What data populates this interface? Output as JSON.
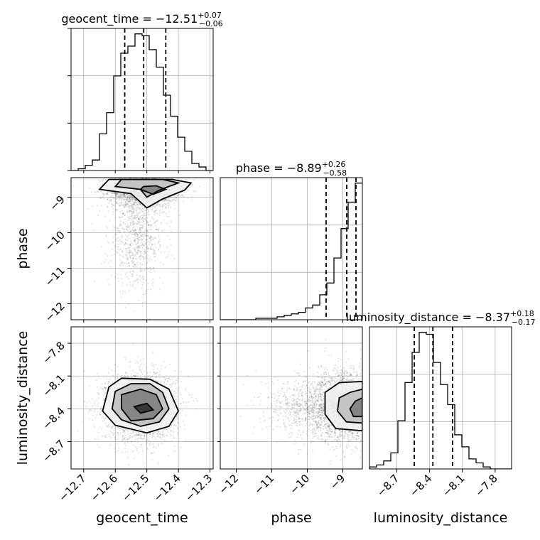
{
  "chart_data": {
    "type": "corner",
    "parameters": [
      "geocent_time",
      "phase",
      "luminosity_distance"
    ],
    "titles": [
      {
        "text": "geocent_time = −12.51",
        "sup": "+0.07",
        "sub": "−0.06"
      },
      {
        "text": "phase = −8.89",
        "sup": "+0.26",
        "sub": "−0.58"
      },
      {
        "text": "luminosity_distance = −8.37",
        "sup": "+0.18",
        "sub": "−0.17"
      }
    ],
    "ranges": [
      [
        -12.74,
        -12.29
      ],
      [
        -12.45,
        -8.45
      ],
      [
        -8.95,
        -7.65
      ]
    ],
    "ticks": [
      {
        "values": [
          -12.7,
          -12.6,
          -12.5,
          -12.4,
          -12.3
        ],
        "labels": [
          "−12.7",
          "−12.6",
          "−12.5",
          "−12.4",
          "−12.3"
        ]
      },
      {
        "values": [
          -12,
          -11,
          -10,
          -9
        ],
        "labels": [
          "−12",
          "−11",
          "−10",
          "−9"
        ]
      },
      {
        "values": [
          -8.7,
          -8.4,
          -8.1,
          -7.8
        ],
        "labels": [
          "−8.7",
          "−8.4",
          "−8.1",
          "−7.8"
        ]
      }
    ],
    "histograms": [
      {
        "edges_start": -12.74,
        "bin_width": 0.0225,
        "counts": [
          0,
          1,
          3,
          6,
          21,
          33,
          54,
          67,
          71,
          78,
          77,
          69,
          59,
          43,
          31,
          19,
          11,
          4,
          2,
          0
        ],
        "quantiles": [
          -12.57,
          -12.51,
          -12.44
        ]
      },
      {
        "edges_start": -12.45,
        "bin_width": 0.2,
        "counts": [
          0,
          0,
          0,
          0,
          0,
          1,
          1,
          1,
          2,
          3,
          4,
          5,
          8,
          10,
          17,
          25,
          42,
          62,
          80,
          93
        ],
        "quantiles": [
          -9.47,
          -8.89,
          -8.63
        ]
      },
      {
        "edges_start": -8.95,
        "bin_width": 0.065,
        "counts": [
          1,
          2,
          4,
          8,
          24,
          43,
          58,
          68,
          67,
          53,
          42,
          32,
          17,
          11,
          5,
          3,
          1,
          0,
          0,
          0
        ],
        "quantiles": [
          -8.54,
          -8.37,
          -8.19
        ]
      }
    ],
    "scatter": [
      {
        "x_param": "geocent_time",
        "y_param": "phase",
        "centers": [
          {
            "x": -12.51,
            "y": -8.8,
            "sx": 0.055,
            "sy": 0.25,
            "n": 2200
          },
          {
            "x": -12.53,
            "y": -10.1,
            "sx": 0.045,
            "sy": 0.75,
            "n": 900
          }
        ],
        "contours": [
          [
            [
              -12.65,
              -8.78
            ],
            [
              -12.55,
              -8.9
            ],
            [
              -12.5,
              -9.3
            ],
            [
              -12.45,
              -9.05
            ],
            [
              -12.38,
              -8.8
            ],
            [
              -12.36,
              -8.6
            ],
            [
              -12.42,
              -8.5
            ],
            [
              -12.62,
              -8.5
            ]
          ],
          [
            [
              -12.6,
              -8.7
            ],
            [
              -12.52,
              -8.78
            ],
            [
              -12.5,
              -9.0
            ],
            [
              -12.46,
              -8.8
            ],
            [
              -12.4,
              -8.6
            ],
            [
              -12.45,
              -8.5
            ],
            [
              -12.58,
              -8.5
            ]
          ],
          [
            [
              -12.52,
              -8.78
            ],
            [
              -12.48,
              -8.92
            ],
            [
              -12.44,
              -8.78
            ],
            [
              -12.47,
              -8.68
            ],
            [
              -12.51,
              -8.7
            ]
          ]
        ]
      },
      {
        "x_param": "geocent_time",
        "y_param": "luminosity_distance",
        "centers": [
          {
            "x": -12.52,
            "y": -8.38,
            "sx": 0.055,
            "sy": 0.15,
            "n": 3200
          }
        ],
        "contours": [
          [
            [
              -12.62,
              -8.2
            ],
            [
              -12.58,
              -8.12
            ],
            [
              -12.49,
              -8.13
            ],
            [
              -12.43,
              -8.22
            ],
            [
              -12.4,
              -8.42
            ],
            [
              -12.43,
              -8.56
            ],
            [
              -12.5,
              -8.62
            ],
            [
              -12.6,
              -8.55
            ],
            [
              -12.64,
              -8.42
            ]
          ],
          [
            [
              -12.6,
              -8.24
            ],
            [
              -12.55,
              -8.17
            ],
            [
              -12.49,
              -8.17
            ],
            [
              -12.45,
              -8.25
            ],
            [
              -12.43,
              -8.4
            ],
            [
              -12.46,
              -8.52
            ],
            [
              -12.52,
              -8.56
            ],
            [
              -12.58,
              -8.5
            ],
            [
              -12.61,
              -8.4
            ]
          ],
          [
            [
              -12.58,
              -8.27
            ],
            [
              -12.52,
              -8.22
            ],
            [
              -12.47,
              -8.27
            ],
            [
              -12.45,
              -8.4
            ],
            [
              -12.48,
              -8.49
            ],
            [
              -12.55,
              -8.51
            ],
            [
              -12.58,
              -8.4
            ]
          ],
          [
            [
              -12.54,
              -8.38
            ],
            [
              -12.5,
              -8.35
            ],
            [
              -12.48,
              -8.41
            ],
            [
              -12.52,
              -8.44
            ]
          ]
        ]
      },
      {
        "x_param": "phase",
        "y_param": "luminosity_distance",
        "centers": [
          {
            "x": -8.9,
            "y": -8.38,
            "sx": 0.5,
            "sy": 0.16,
            "n": 2600
          },
          {
            "x": -10.0,
            "y": -8.38,
            "sx": 0.6,
            "sy": 0.14,
            "n": 700
          }
        ],
        "contours": [
          [
            [
              -8.45,
              -8.15
            ],
            [
              -9.1,
              -8.16
            ],
            [
              -9.5,
              -8.25
            ],
            [
              -9.5,
              -8.45
            ],
            [
              -9.2,
              -8.58
            ],
            [
              -8.45,
              -8.6
            ]
          ],
          [
            [
              -8.45,
              -8.22
            ],
            [
              -8.8,
              -8.25
            ],
            [
              -9.1,
              -8.3
            ],
            [
              -9.15,
              -8.42
            ],
            [
              -8.9,
              -8.52
            ],
            [
              -8.45,
              -8.53
            ]
          ],
          [
            [
              -8.45,
              -8.3
            ],
            [
              -8.65,
              -8.33
            ],
            [
              -8.8,
              -8.4
            ],
            [
              -8.7,
              -8.47
            ],
            [
              -8.45,
              -8.47
            ]
          ]
        ]
      }
    ],
    "grid": true
  }
}
